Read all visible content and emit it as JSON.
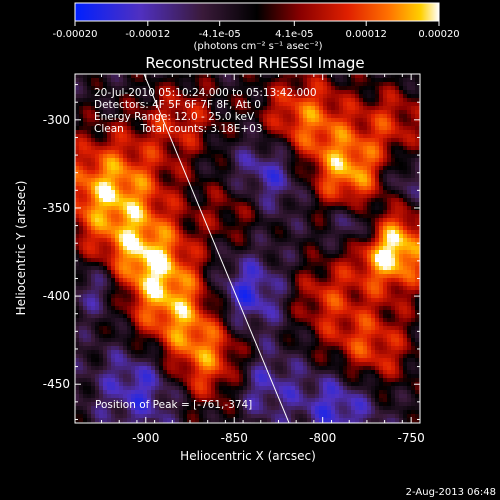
{
  "chart_data": {
    "type": "heatmap",
    "title": "Reconstructed RHESSI Image",
    "xlabel": "Heliocentric X (arcsec)",
    "ylabel": "Heliocentric Y (arcsec)",
    "xlim": [
      -940,
      -745
    ],
    "ylim": [
      -472,
      -274
    ],
    "xticks": [
      -900,
      -850,
      -800,
      -750
    ],
    "xtick_labels": [
      "-900",
      "-850",
      "-800",
      "-750"
    ],
    "yticks": [
      -300,
      -350,
      -400,
      -450
    ],
    "ytick_labels": [
      "-300",
      "-350",
      "-400",
      "-450"
    ],
    "colorbar": {
      "range": [
        -0.0002,
        0.0002
      ],
      "ticks": [
        -0.0002,
        -0.00012,
        -4.1e-05,
        4.1e-05,
        0.00012,
        0.0002
      ],
      "tick_labels": [
        "-0.00020",
        "-0.00012",
        "-4.1e-05",
        "4.1e-05",
        "0.00012",
        "0.00020"
      ],
      "units": "(photons cm⁻² s⁻¹ asec⁻²)",
      "colors": [
        "#0020ff",
        "#5030c0",
        "#3a1a3a",
        "#000000",
        "#8a0000",
        "#e02000",
        "#ff7000",
        "#ffd000",
        "#ffffff"
      ]
    },
    "info_lines": [
      "20-Jul-2010 05:10:24.000 to 05:13:42.000",
      "Detectors: 4F 5F 6F 7F 8F, Att 0",
      "Energy Range: 12.0 - 25.0 keV",
      "Clean     Total counts: 3.18E+03"
    ],
    "peak_label": "Position of Peak = [-761,-374]",
    "peak": [
      -761,
      -374
    ],
    "limb_line": [
      [
        -901,
        -274
      ],
      [
        -819,
        -472
      ]
    ],
    "grid": false
  },
  "footer": {
    "date": "2-Aug-2013 06:48"
  }
}
